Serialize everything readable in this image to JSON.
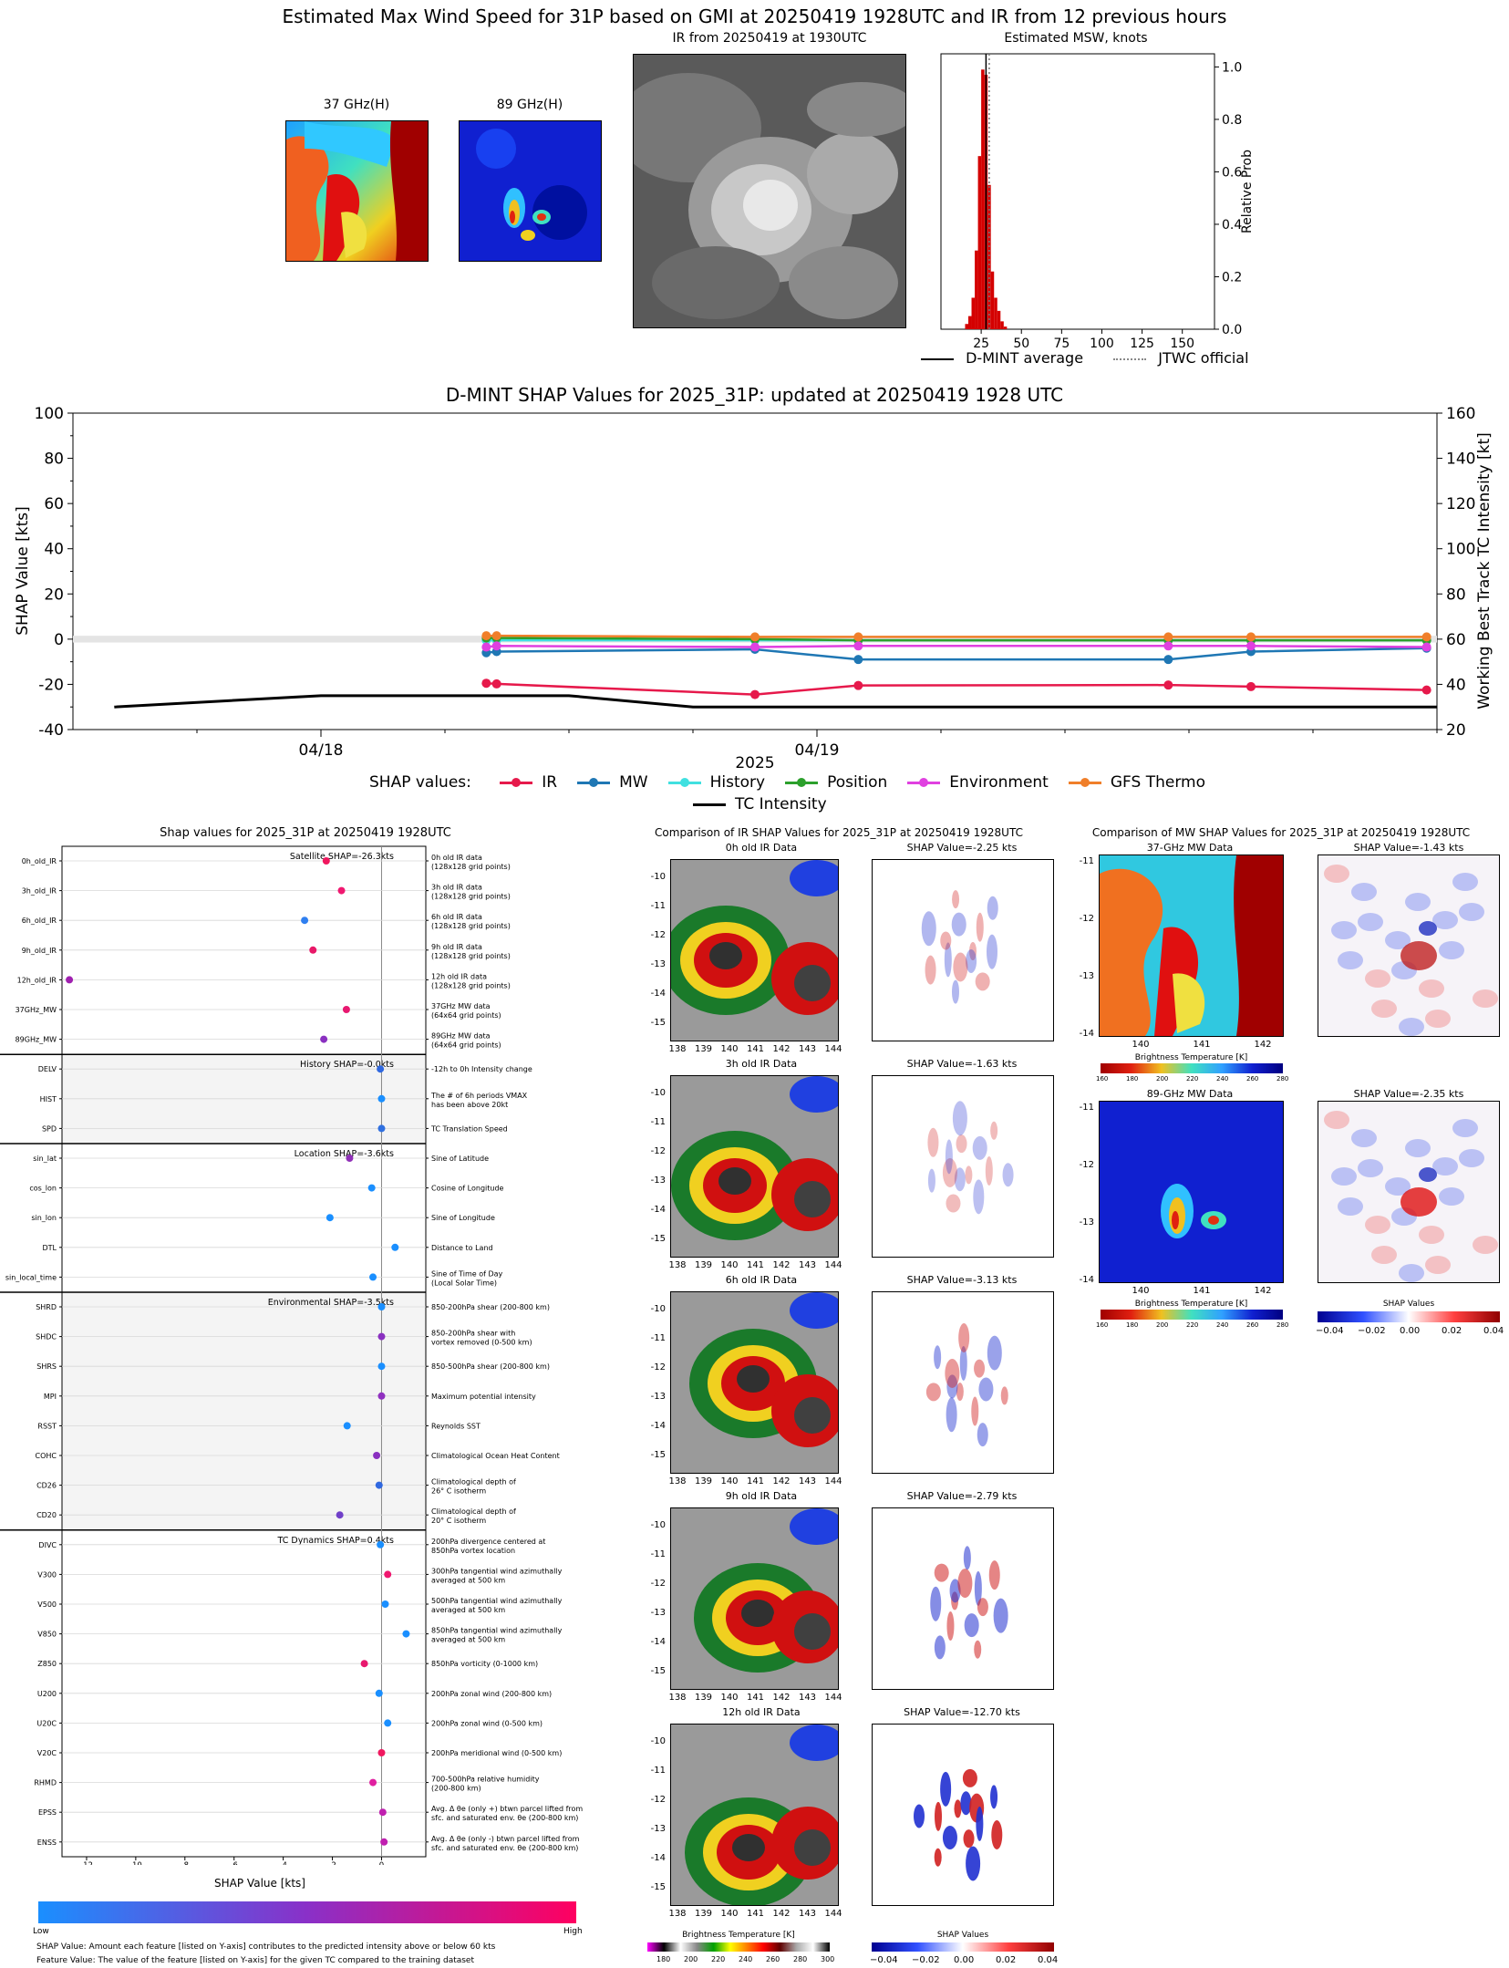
{
  "top": {
    "title": "Estimated Max Wind Speed for 31P based on GMI at 20250419 1928UTC and IR from 12 previous hours",
    "mw37_label": "37 GHz(H)",
    "mw89_label": "89 GHz(H)",
    "ir_label": "IR from 20250419 at 1930UTC",
    "msw_label": "Estimated MSW, knots",
    "msw_ylabel": "Relative Prob",
    "legend_dmint": "D-MINT average",
    "legend_jtwc": "JTWC official"
  },
  "shap_ts": {
    "title": "D-MINT SHAP Values for 2025_31P: updated at 20250419 1928 UTC",
    "ylabel_left": "SHAP Value [kts]",
    "ylabel_right": "Working Best Track TC Intensity [kt]",
    "xlabel": "2025",
    "legend_title": "SHAP values:",
    "legend": [
      "IR",
      "MW",
      "History",
      "Position",
      "Environment",
      "GFS Thermo"
    ],
    "legend_tc": "TC Intensity",
    "left_ticks": [
      "100",
      "80",
      "60",
      "40",
      "20",
      "0",
      "-20",
      "-40"
    ],
    "right_ticks": [
      "160",
      "140",
      "120",
      "100",
      "80",
      "60",
      "40",
      "20"
    ],
    "x_ticks": [
      "04/18",
      "04/19"
    ]
  },
  "shap_panel": {
    "title": "Shap values for 2025_31P at 20250419 1928UTC",
    "xlabel": "SHAP Value [kts]",
    "x_ticks": [
      "-12",
      "-10",
      "-8",
      "-6",
      "-4",
      "-2",
      "0"
    ],
    "group_labels": [
      "Satellite SHAP=-26.3kts",
      "History SHAP=-0.0kts",
      "Location SHAP=-3.6kts",
      "Environmental SHAP=-3.5kts",
      "TC Dynamics SHAP=0.4kts"
    ],
    "features": [
      {
        "name": "0h_old_IR",
        "desc1": "0h old IR data",
        "desc2": "(128x128 grid points)"
      },
      {
        "name": "3h_old_IR",
        "desc1": "3h old IR data",
        "desc2": "(128x128 grid points)"
      },
      {
        "name": "6h_old_IR",
        "desc1": "6h old IR data",
        "desc2": "(128x128 grid points)"
      },
      {
        "name": "9h_old_IR",
        "desc1": "9h old IR data",
        "desc2": "(128x128 grid points)"
      },
      {
        "name": "12h_old_IR",
        "desc1": "12h old IR data",
        "desc2": "(128x128 grid points)"
      },
      {
        "name": "37GHz_MW",
        "desc1": "37GHz MW data",
        "desc2": "(64x64 grid points)"
      },
      {
        "name": "89GHz_MW",
        "desc1": "89GHz MW data",
        "desc2": "(64x64 grid points)"
      },
      {
        "name": "DELV",
        "desc1": "-12h to 0h Intensity change",
        "desc2": ""
      },
      {
        "name": "HIST",
        "desc1": "The # of 6h periods VMAX",
        "desc2": "has been above 20kt"
      },
      {
        "name": "SPD",
        "desc1": "TC Translation Speed",
        "desc2": ""
      },
      {
        "name": "sin_lat",
        "desc1": "Sine of Latitude",
        "desc2": ""
      },
      {
        "name": "cos_lon",
        "desc1": "Cosine of Longitude",
        "desc2": ""
      },
      {
        "name": "sin_lon",
        "desc1": "Sine of Longitude",
        "desc2": ""
      },
      {
        "name": "DTL",
        "desc1": "Distance to Land",
        "desc2": ""
      },
      {
        "name": "sin_local_time",
        "desc1": "Sine of Time of Day",
        "desc2": "(Local Solar Time)"
      },
      {
        "name": "SHRD",
        "desc1": "850-200hPa shear (200-800 km)",
        "desc2": ""
      },
      {
        "name": "SHDC",
        "desc1": "850-200hPa shear with",
        "desc2": "vortex removed (0-500 km)"
      },
      {
        "name": "SHRS",
        "desc1": "850-500hPa shear (200-800 km)",
        "desc2": ""
      },
      {
        "name": "MPI",
        "desc1": "Maximum potential intensity",
        "desc2": ""
      },
      {
        "name": "RSST",
        "desc1": "Reynolds SST",
        "desc2": ""
      },
      {
        "name": "COHC",
        "desc1": "Climatological Ocean Heat Content",
        "desc2": ""
      },
      {
        "name": "CD26",
        "desc1": "Climatological depth of",
        "desc2": "26° C isotherm"
      },
      {
        "name": "CD20",
        "desc1": "Climatological depth of",
        "desc2": "20° C isotherm"
      },
      {
        "name": "DIVC",
        "desc1": "200hPa divergence centered at",
        "desc2": "850hPa vortex location"
      },
      {
        "name": "V300",
        "desc1": "300hPa tangential wind azimuthally",
        "desc2": "averaged at 500 km"
      },
      {
        "name": "V500",
        "desc1": "500hPa tangential wind azimuthally",
        "desc2": "averaged at 500 km"
      },
      {
        "name": "V850",
        "desc1": "850hPa tangential wind azimuthally",
        "desc2": "averaged at 500 km"
      },
      {
        "name": "Z850",
        "desc1": "850hPa vorticity (0-1000 km)",
        "desc2": ""
      },
      {
        "name": "U200",
        "desc1": "200hPa zonal wind (200-800 km)",
        "desc2": ""
      },
      {
        "name": "U20C",
        "desc1": "200hPa zonal wind (0-500 km)",
        "desc2": ""
      },
      {
        "name": "V20C",
        "desc1": "200hPa meridional wind (0-500 km)",
        "desc2": ""
      },
      {
        "name": "RHMD",
        "desc1": "700-500hPa relative humidity",
        "desc2": "(200-800 km)"
      },
      {
        "name": "EPSS",
        "desc1": "Avg. Δ θe (only +) btwn parcel lifted from",
        "desc2": "sfc. and saturated env. θe (200-800 km)"
      },
      {
        "name": "ENSS",
        "desc1": "Avg. Δ θe (only -) btwn parcel lifted from",
        "desc2": "sfc. and saturated env. θe (200-800 km)"
      }
    ],
    "colorbar_low": "Low",
    "colorbar_high": "High",
    "note1": "SHAP Value: Amount each feature [listed on Y-axis] contributes to the predicted intensity above or below 60 kts",
    "note2": "Feature Value: The value of the feature [listed on Y-axis] for the given TC compared to the training dataset"
  },
  "ir_compare": {
    "title": "Comparison of IR SHAP Values for 2025_31P at 20250419 1928UTC",
    "rows": [
      {
        "label": "0h old IR Data",
        "shap": "SHAP Value=-2.25 kts"
      },
      {
        "label": "3h old IR Data",
        "shap": "SHAP Value=-1.63 kts"
      },
      {
        "label": "6h old IR Data",
        "shap": "SHAP Value=-3.13 kts"
      },
      {
        "label": "9h old IR Data",
        "shap": "SHAP Value=-2.79 kts"
      },
      {
        "label": "12h old IR Data",
        "shap": "SHAP Value=-12.70 kts"
      }
    ],
    "lat_ticks": [
      "-10",
      "-11",
      "-12",
      "-13",
      "-14",
      "-15"
    ],
    "lon_ticks": [
      "138",
      "139",
      "140",
      "141",
      "142",
      "143",
      "144"
    ],
    "cbar_label": "Brightness Temperature [K]",
    "cbar_ticks": [
      "180",
      "200",
      "220",
      "240",
      "260",
      "280",
      "300"
    ],
    "shap_cbar_label": "SHAP Values",
    "shap_cbar_ticks": [
      "−0.04",
      "−0.02",
      "0.00",
      "0.02",
      "0.04"
    ]
  },
  "mw_compare": {
    "title": "Comparison of MW SHAP Values for 2025_31P at 20250419 1928UTC",
    "rows": [
      {
        "label": "37-GHz MW Data",
        "shap": "SHAP Value=-1.43 kts"
      },
      {
        "label": "89-GHz MW Data",
        "shap": "SHAP Value=-2.35 kts"
      }
    ],
    "lat_ticks": [
      "-11",
      "-12",
      "-13",
      "-14"
    ],
    "lon_ticks": [
      "140",
      "141",
      "142"
    ],
    "cbar_label": "Brightness Temperature [K]",
    "cbar_ticks": [
      "160",
      "180",
      "200",
      "220",
      "240",
      "260",
      "280"
    ],
    "shap_cbar_label": "SHAP Values",
    "shap_cbar_ticks": [
      "−0.04",
      "−0.02",
      "0.00",
      "0.02",
      "0.04"
    ]
  },
  "chart_data": [
    {
      "type": "bar",
      "title": "Estimated MSW, knots",
      "ylabel": "Relative Prob",
      "x": [
        16,
        18,
        20,
        22,
        24,
        26,
        28,
        30,
        32,
        34,
        36,
        38,
        40
      ],
      "values": [
        0.02,
        0.05,
        0.12,
        0.3,
        0.66,
        0.99,
        0.97,
        0.55,
        0.22,
        0.12,
        0.07,
        0.03,
        0.01
      ],
      "xlim": [
        0,
        170
      ],
      "ylim": [
        0,
        1.05
      ],
      "x_ticks": [
        25,
        50,
        75,
        100,
        125,
        150
      ],
      "y_ticks": [
        0.0,
        0.2,
        0.4,
        0.6,
        0.8,
        1.0
      ],
      "dmint_average": 28,
      "jtwc_official": 30
    },
    {
      "type": "line",
      "title": "D-MINT SHAP Values for 2025_31P: updated at 20250419 1928 UTC",
      "ylim": [
        -40,
        100
      ],
      "y2lim": [
        20,
        160
      ],
      "xlim_hours": [
        -36,
        30
      ],
      "x_ticks_hours": [
        -24,
        0
      ],
      "series": [
        {
          "name": "IR",
          "color": "#e6194b",
          "x": [
            -16,
            -15.5,
            -3,
            2,
            17,
            21,
            29.5
          ],
          "values": [
            -19.5,
            -19.8,
            -24.5,
            -20.5,
            -20.3,
            -21,
            -22.5
          ]
        },
        {
          "name": "MW",
          "color": "#1f77b4",
          "x": [
            -16,
            -15.5,
            -3,
            2,
            17,
            21,
            29.5
          ],
          "values": [
            -6,
            -5.5,
            -4.5,
            -9,
            -9,
            -5.5,
            -4
          ]
        },
        {
          "name": "History",
          "color": "#40e0e0",
          "x": [
            -16,
            -15.5,
            -3,
            2,
            17,
            21,
            29.5
          ],
          "values": [
            -0.5,
            -0.5,
            -0.5,
            -0.5,
            -0.5,
            -0.5,
            -0.5
          ]
        },
        {
          "name": "Position",
          "color": "#2ca02c",
          "x": [
            -16,
            -15.5,
            -3,
            2,
            17,
            21,
            29.5
          ],
          "values": [
            0.5,
            0.5,
            0,
            -0.5,
            -0.5,
            -0.5,
            -0.5
          ]
        },
        {
          "name": "Environment",
          "color": "#e040e0",
          "x": [
            -16,
            -15.5,
            -3,
            2,
            17,
            21,
            29.5
          ],
          "values": [
            -3.5,
            -3,
            -3.5,
            -3,
            -3,
            -3,
            -3.5
          ]
        },
        {
          "name": "GFS Thermo",
          "color": "#f07f2a",
          "x": [
            -16,
            -15.5,
            -3,
            2,
            17,
            21,
            29.5
          ],
          "values": [
            1.5,
            1.5,
            1.0,
            1.0,
            1.0,
            1.0,
            1.0
          ]
        },
        {
          "name": "TC Intensity",
          "color": "#000000",
          "axis": "right",
          "x": [
            -34,
            -24,
            -12,
            -6,
            30
          ],
          "values": [
            30,
            35,
            35,
            30,
            30
          ]
        }
      ]
    },
    {
      "type": "scatter",
      "title": "Shap values for 2025_31P at 20250419 1928UTC",
      "xlabel": "SHAP Value [kts]",
      "xlim": [
        -13,
        1.8
      ],
      "features": [
        "0h_old_IR",
        "3h_old_IR",
        "6h_old_IR",
        "9h_old_IR",
        "12h_old_IR",
        "37GHz_MW",
        "89GHz_MW",
        "DELV",
        "HIST",
        "SPD",
        "sin_lat",
        "cos_lon",
        "sin_lon",
        "DTL",
        "sin_local_time",
        "SHRD",
        "SHDC",
        "SHRS",
        "MPI",
        "RSST",
        "COHC",
        "CD26",
        "CD20",
        "DIVC",
        "V300",
        "V500",
        "V850",
        "Z850",
        "U200",
        "U20C",
        "V20C",
        "RHMD",
        "EPSS",
        "ENSS"
      ],
      "values": [
        -2.25,
        -1.63,
        -3.13,
        -2.79,
        -12.7,
        -1.43,
        -2.35,
        -0.05,
        0.0,
        0.0,
        -1.3,
        -0.4,
        -2.1,
        0.55,
        -0.35,
        0.0,
        0.0,
        0.0,
        0.0,
        -1.4,
        -0.2,
        -0.1,
        -1.7,
        -0.05,
        0.25,
        0.15,
        1.0,
        -0.7,
        -0.1,
        0.25,
        0.0,
        -0.35,
        0.05,
        0.1
      ],
      "feature_colors": [
        "#f0185f",
        "#f01870",
        "#2f7ff0",
        "#e81868",
        "#a020b0",
        "#e81870",
        "#8a30c0",
        "#3068e0",
        "#1a8fff",
        "#3070e0",
        "#9030b8",
        "#1a8fff",
        "#1a8fff",
        "#1a8fff",
        "#1a8fff",
        "#1a8fff",
        "#8a30c0",
        "#1a8fff",
        "#9030c0",
        "#1a8fff",
        "#8a30c0",
        "#3068e0",
        "#7040c8",
        "#1a8fff",
        "#f01870",
        "#1a8fff",
        "#1a8fff",
        "#e8186e",
        "#1a8fff",
        "#1a8fff",
        "#f0185f",
        "#e020a0",
        "#c020b0",
        "#c020b0"
      ]
    }
  ]
}
